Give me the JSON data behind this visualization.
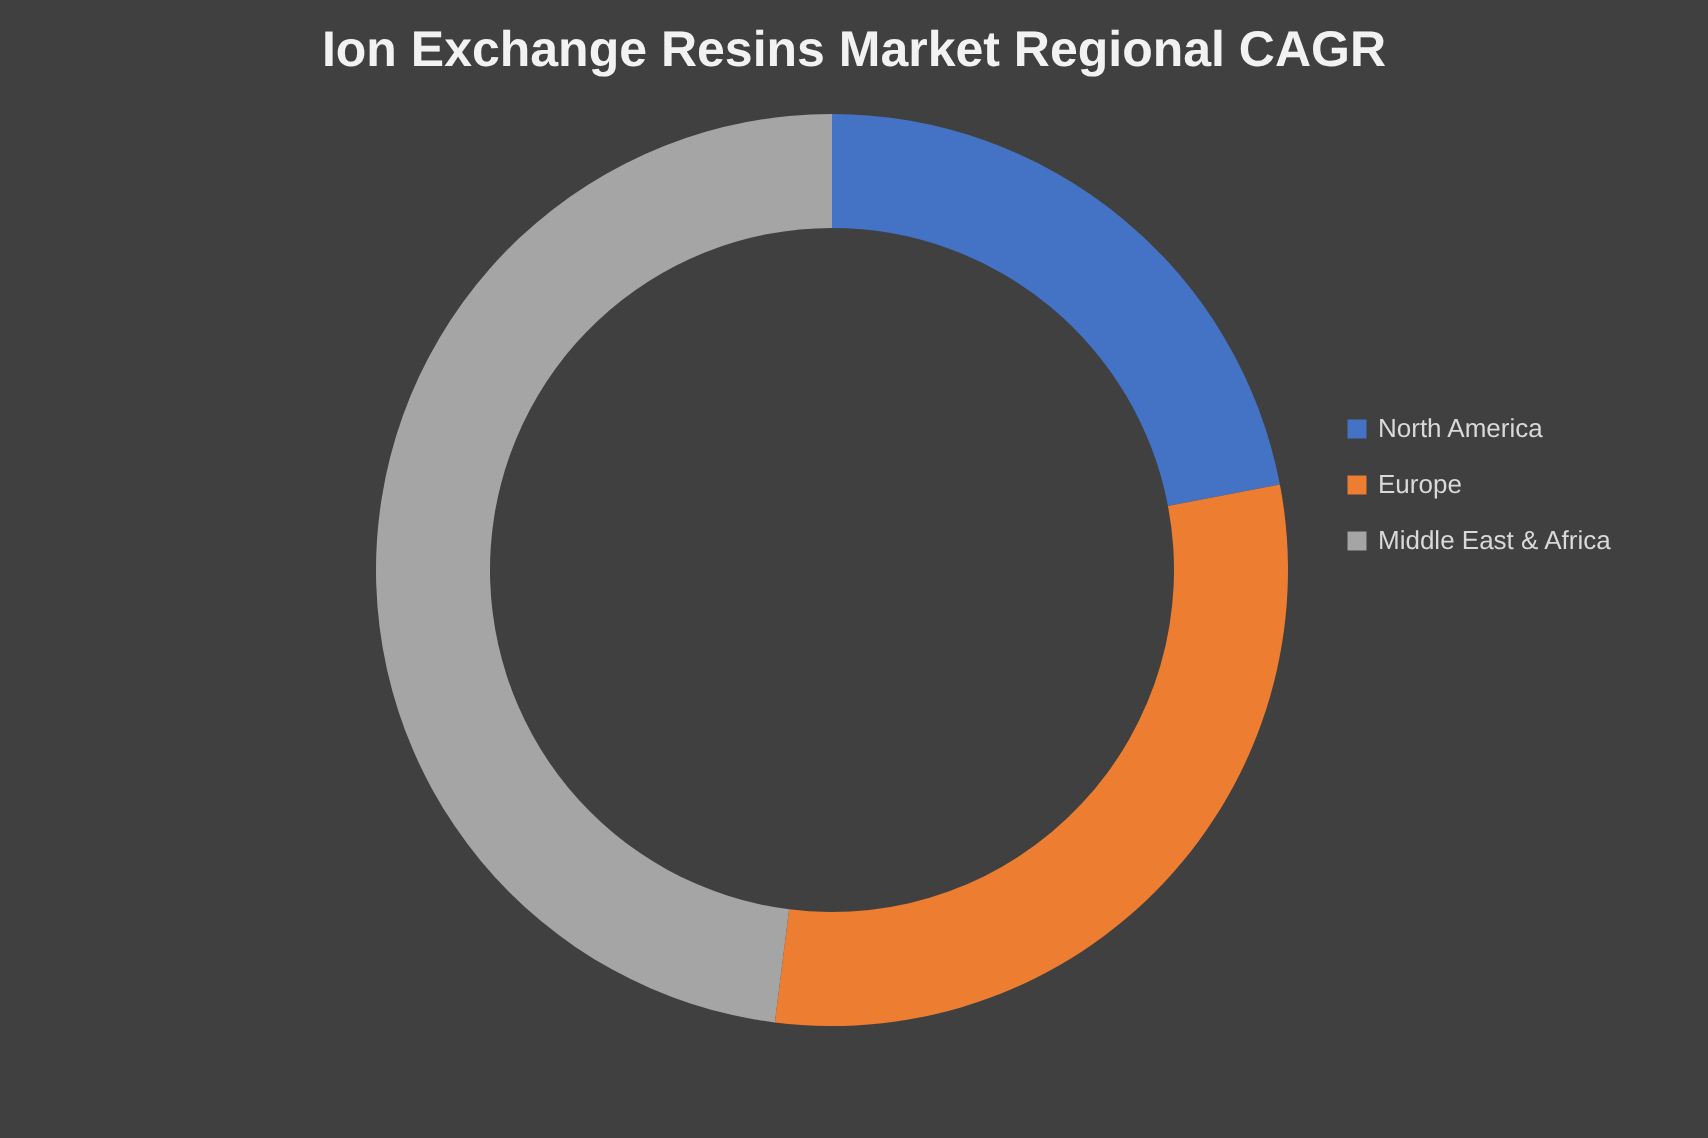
{
  "chart_data": {
    "type": "donut",
    "title": "Ion Exchange Resins Market Regional CAGR",
    "categories": [
      "North America",
      "Europe",
      "Middle East & Africa"
    ],
    "values": [
      22,
      30,
      48
    ],
    "colors": [
      "#4472c4",
      "#ed7d31",
      "#a5a5a5"
    ],
    "legend": "right"
  }
}
